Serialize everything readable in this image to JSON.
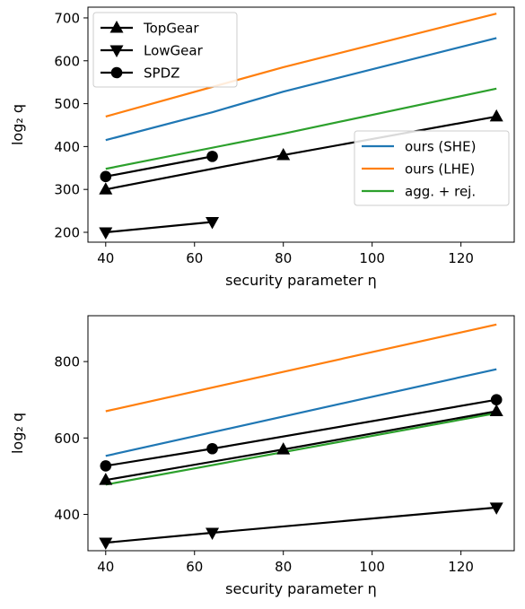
{
  "chart_data": [
    {
      "type": "line",
      "xlabel": "security parameter η",
      "ylabel": "log₂ q",
      "xlim": [
        36,
        132
      ],
      "ylim": [
        177,
        725
      ],
      "xticks": [
        40,
        60,
        80,
        100,
        120
      ],
      "yticks": [
        200,
        300,
        400,
        500,
        600,
        700
      ],
      "grid": false,
      "legends": [
        {
          "placement": "top-left",
          "entries": [
            "TopGear",
            "LowGear",
            "SPDZ"
          ]
        },
        {
          "placement": "center-right",
          "entries": [
            "ours (SHE)",
            "ours (LHE)",
            "agg. + rej."
          ]
        }
      ],
      "series": [
        {
          "name": "ours (SHE)",
          "color": "#1f77b4",
          "marker": "none",
          "x": [
            40,
            64,
            80,
            128
          ],
          "y": [
            415,
            480,
            528,
            653
          ]
        },
        {
          "name": "ours (LHE)",
          "color": "#ff7f0e",
          "marker": "none",
          "x": [
            40,
            80,
            128
          ],
          "y": [
            470,
            585,
            710
          ]
        },
        {
          "name": "agg. + rej.",
          "color": "#2ca02c",
          "marker": "none",
          "x": [
            40,
            80,
            128
          ],
          "y": [
            348,
            430,
            535
          ]
        },
        {
          "name": "TopGear",
          "color": "#000000",
          "marker": "triangle-up",
          "x": [
            40,
            80,
            128
          ],
          "y": [
            300,
            380,
            470
          ]
        },
        {
          "name": "LowGear",
          "color": "#000000",
          "marker": "triangle-down",
          "x": [
            40,
            64
          ],
          "y": [
            200,
            224
          ]
        },
        {
          "name": "SPDZ",
          "color": "#000000",
          "marker": "circle",
          "x": [
            40,
            64
          ],
          "y": [
            330,
            377
          ]
        }
      ]
    },
    {
      "type": "line",
      "xlabel": "security parameter η",
      "ylabel": "log₂ q",
      "xlim": [
        36,
        132
      ],
      "ylim": [
        305,
        920
      ],
      "xticks": [
        40,
        60,
        80,
        100,
        120
      ],
      "yticks": [
        400,
        600,
        800
      ],
      "grid": false,
      "series": [
        {
          "name": "ours (SHE)",
          "color": "#1f77b4",
          "marker": "none",
          "x": [
            40,
            128
          ],
          "y": [
            553,
            780
          ]
        },
        {
          "name": "ours (LHE)",
          "color": "#ff7f0e",
          "marker": "none",
          "x": [
            40,
            128
          ],
          "y": [
            670,
            897
          ]
        },
        {
          "name": "agg. + rej.",
          "color": "#2ca02c",
          "marker": "none",
          "x": [
            40,
            128
          ],
          "y": [
            478,
            665
          ]
        },
        {
          "name": "TopGear",
          "color": "#000000",
          "marker": "triangle-up",
          "x": [
            40,
            80,
            128
          ],
          "y": [
            490,
            570,
            670
          ]
        },
        {
          "name": "LowGear",
          "color": "#000000",
          "marker": "triangle-down",
          "x": [
            40,
            64,
            128
          ],
          "y": [
            326,
            352,
            418
          ]
        },
        {
          "name": "SPDZ",
          "color": "#000000",
          "marker": "circle",
          "x": [
            40,
            64,
            128
          ],
          "y": [
            527,
            572,
            700
          ]
        }
      ]
    }
  ]
}
